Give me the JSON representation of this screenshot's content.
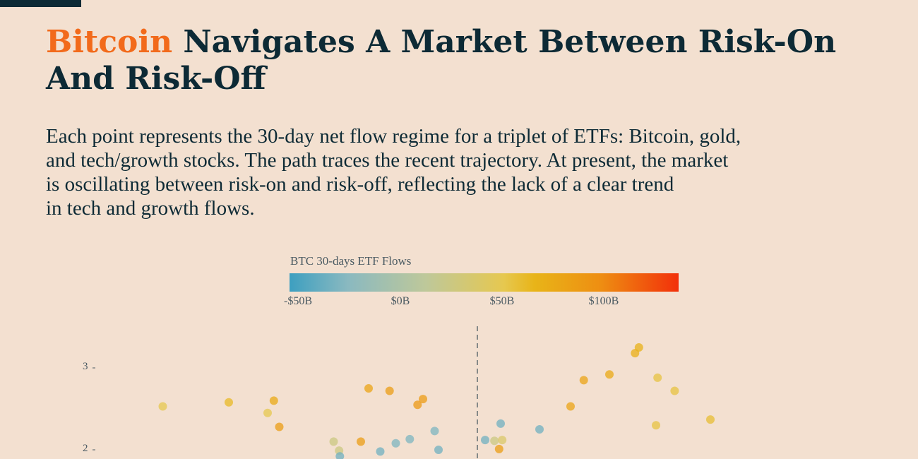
{
  "header": {
    "title_highlight": "Bitcoin",
    "title_rest": " Navigates A Market Between Risk-On And Risk-Off",
    "subtitle_lines": [
      "Each point represents the 30-day net flow regime for a triplet of ETFs: Bitcoin, gold,",
      "and tech/growth stocks. The path traces the recent trajectory. At present, the market",
      "is oscillating between risk-on and risk-off, reflecting the lack of a clear trend",
      "in tech and growth flows."
    ]
  },
  "legend": {
    "title": "BTC 30-days ETF Flows",
    "ticks": [
      "-$50B",
      "$0B",
      "$50B",
      "$100B"
    ]
  },
  "colors": {
    "title_accent": "#f26a1b",
    "text_dark": "#0d2a35",
    "background": "#f3e0d0"
  },
  "chart_data": {
    "type": "scatter",
    "title": "",
    "xlabel": "",
    "ylabel": "",
    "y_ticks": [
      "3",
      "2"
    ],
    "color_scale": {
      "label": "BTC 30-days ETF Flows",
      "range": [
        -60,
        138
      ],
      "ticks": [
        -50,
        0,
        50,
        100
      ]
    },
    "reference_line": "vertical dashed",
    "points": [
      {
        "x": -4.05,
        "y": 2.53,
        "flow": 40
      },
      {
        "x": -3.2,
        "y": 2.58,
        "flow": 55
      },
      {
        "x": -2.7,
        "y": 2.45,
        "flow": 40
      },
      {
        "x": -2.62,
        "y": 2.6,
        "flow": 70
      },
      {
        "x": -2.55,
        "y": 2.28,
        "flow": 80
      },
      {
        "x": -1.4,
        "y": 2.75,
        "flow": 75
      },
      {
        "x": -1.13,
        "y": 2.72,
        "flow": 80
      },
      {
        "x": -0.77,
        "y": 2.55,
        "flow": 85
      },
      {
        "x": -0.7,
        "y": 2.62,
        "flow": 82
      },
      {
        "x": -1.5,
        "y": 2.1,
        "flow": 80
      },
      {
        "x": -1.25,
        "y": 1.98,
        "flow": -40
      },
      {
        "x": -1.05,
        "y": 2.08,
        "flow": -35
      },
      {
        "x": -0.87,
        "y": 2.13,
        "flow": -35
      },
      {
        "x": -0.55,
        "y": 2.23,
        "flow": -35
      },
      {
        "x": -0.5,
        "y": 2.0,
        "flow": -40
      },
      {
        "x": -1.85,
        "y": 2.1,
        "flow": 20
      },
      {
        "x": -1.78,
        "y": 1.99,
        "flow": 20
      },
      {
        "x": -1.77,
        "y": 1.92,
        "flow": -40
      },
      {
        "x": 0.1,
        "y": 2.12,
        "flow": -40
      },
      {
        "x": 0.22,
        "y": 2.11,
        "flow": 20
      },
      {
        "x": 0.28,
        "y": 2.01,
        "flow": 80
      },
      {
        "x": 0.32,
        "y": 2.12,
        "flow": 30
      },
      {
        "x": 0.3,
        "y": 2.32,
        "flow": -40
      },
      {
        "x": 0.8,
        "y": 2.25,
        "flow": -40
      },
      {
        "x": 1.2,
        "y": 2.53,
        "flow": 75
      },
      {
        "x": 1.37,
        "y": 2.85,
        "flow": 75
      },
      {
        "x": 1.7,
        "y": 2.92,
        "flow": 70
      },
      {
        "x": 2.03,
        "y": 3.18,
        "flow": 65
      },
      {
        "x": 2.08,
        "y": 3.25,
        "flow": 62
      },
      {
        "x": 2.32,
        "y": 2.88,
        "flow": 45
      },
      {
        "x": 2.3,
        "y": 2.3,
        "flow": 45
      },
      {
        "x": 2.54,
        "y": 2.72,
        "flow": 45
      },
      {
        "x": 3.0,
        "y": 2.37,
        "flow": 50
      }
    ]
  }
}
